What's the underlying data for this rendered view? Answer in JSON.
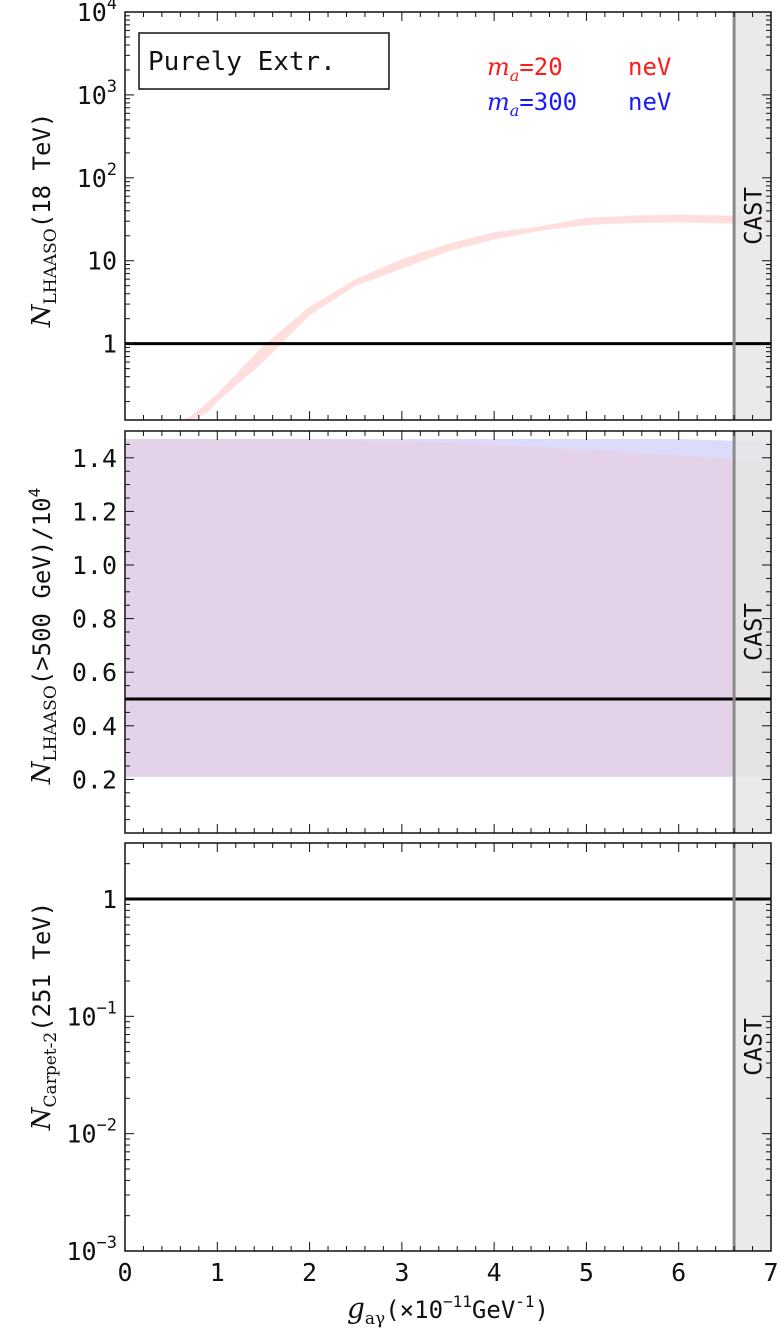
{
  "figure": {
    "panel_label": "Purely Extr.",
    "legend": [
      {
        "symbol": "m",
        "subscript": "a",
        "value_text": "=20",
        "unit": "neV",
        "color": "#ff1a1a"
      },
      {
        "symbol": "m",
        "subscript": "a",
        "value_text": "=300",
        "unit": "neV",
        "color": "#1a1aff"
      }
    ],
    "xlabel": {
      "symbol": "g",
      "subscript": "aγ",
      "rest": "(×10",
      "exp": "−11",
      "unit": "GeV",
      "unit_exp": "-1",
      "close": ")"
    },
    "cast_label": "CAST",
    "colors": {
      "red_band": "#ffdede",
      "blue_band": "#dcdcfa",
      "purple_band": "#e4d2e8",
      "cast_fill": "#e6e6e6",
      "cast_line": "#8a8a8a",
      "ref_line": "#000000"
    }
  },
  "chart_data": [
    {
      "type": "area",
      "panel": "top",
      "ylabel": {
        "symbol": "N",
        "subscript": "LHAASO",
        "rest": "(18 TeV)"
      },
      "yscale": "log",
      "xlim": [
        0,
        7
      ],
      "ylim": [
        0.12,
        10000
      ],
      "yticks": [
        {
          "value": 1,
          "label": "1"
        },
        {
          "value": 10,
          "label": "10"
        },
        {
          "value": 100,
          "base": "10",
          "exp": "2"
        },
        {
          "value": 1000,
          "base": "10",
          "exp": "3"
        },
        {
          "value": 10000,
          "base": "10",
          "exp": "4"
        }
      ],
      "reference_line": 1,
      "cast_limit": 6.6,
      "series": [
        {
          "name": "m_a=20 neV",
          "color": "#ffdede",
          "x": [
            0.6,
            0.7,
            0.8,
            0.9,
            1.0,
            1.5,
            2.0,
            2.5,
            3.0,
            3.5,
            4.0,
            4.5,
            5.0,
            5.5,
            6.0,
            6.6,
            7.0
          ],
          "lower": [
            0.12,
            0.12,
            0.13,
            0.15,
            0.2,
            0.6,
            2.2,
            5.0,
            8.0,
            13,
            18,
            23,
            27,
            28.5,
            29,
            28,
            27.5
          ],
          "upper": [
            0.12,
            0.13,
            0.16,
            0.2,
            0.25,
            0.95,
            2.8,
            6.0,
            10.5,
            16,
            22,
            26,
            33,
            35,
            36,
            35,
            34
          ]
        }
      ]
    },
    {
      "type": "area",
      "panel": "middle",
      "ylabel": {
        "symbol": "N",
        "subscript": "LHAASO",
        "rest": "(>500 GeV)/10",
        "exp": "4"
      },
      "yscale": "linear",
      "xlim": [
        0,
        7
      ],
      "ylim": [
        0,
        1.5
      ],
      "yticks": [
        {
          "value": 0.2,
          "label": "0.2"
        },
        {
          "value": 0.4,
          "label": "0.4"
        },
        {
          "value": 0.6,
          "label": "0.6"
        },
        {
          "value": 0.8,
          "label": "0.8"
        },
        {
          "value": 1.0,
          "label": "1.0"
        },
        {
          "value": 1.2,
          "label": "1.2"
        },
        {
          "value": 1.4,
          "label": "1.4"
        }
      ],
      "reference_line": 0.5,
      "cast_limit": 6.6,
      "series": [
        {
          "name": "m_a=300 neV",
          "color": "#dcdcfa",
          "x": [
            0,
            1,
            2,
            3,
            4,
            5,
            6,
            7
          ],
          "lower": [
            0.21,
            0.21,
            0.21,
            0.21,
            0.21,
            0.21,
            0.21,
            0.21
          ],
          "upper": [
            1.47,
            1.47,
            1.47,
            1.47,
            1.47,
            1.47,
            1.47,
            1.46
          ]
        },
        {
          "name": "m_a=20 neV",
          "color": "#e4d2e8",
          "x": [
            0,
            1,
            2,
            3,
            4,
            5,
            6,
            7
          ],
          "lower": [
            0.21,
            0.21,
            0.21,
            0.21,
            0.21,
            0.21,
            0.21,
            0.21
          ],
          "upper": [
            1.47,
            1.47,
            1.47,
            1.46,
            1.45,
            1.43,
            1.41,
            1.38
          ]
        }
      ]
    },
    {
      "type": "line",
      "panel": "bottom",
      "ylabel": {
        "symbol": "N",
        "subscript": "Carpet-2",
        "rest": "(251 TeV)"
      },
      "yscale": "log",
      "xlim": [
        0,
        7
      ],
      "ylim": [
        0.001,
        3
      ],
      "yticks": [
        {
          "value": 1,
          "label": "1"
        },
        {
          "value": 0.1,
          "base": "10",
          "exp": "−1"
        },
        {
          "value": 0.01,
          "base": "10",
          "exp": "−2"
        },
        {
          "value": 0.001,
          "base": "10",
          "exp": "−3"
        }
      ],
      "xticks": [
        0,
        1,
        2,
        3,
        4,
        5,
        6,
        7
      ],
      "reference_line": 1,
      "cast_limit": 6.6,
      "series": []
    }
  ]
}
